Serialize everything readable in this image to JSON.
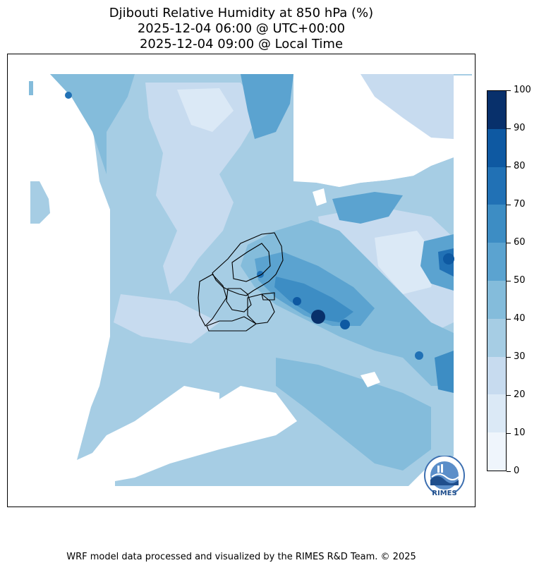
{
  "title": {
    "line1": "Djibouti Relative Humidity at 850 hPa (%)",
    "line2": "2025-12-04 06:00 @ UTC+00:00",
    "line3": "2025-12-04 09:00 @ Local Time"
  },
  "colorbar": {
    "ticks": [
      "0",
      "10",
      "20",
      "30",
      "40",
      "50",
      "60",
      "70",
      "80",
      "90",
      "100"
    ],
    "colors": [
      "#eff5fc",
      "#dbe9f6",
      "#c7dbef",
      "#a6cde4",
      "#84bcdb",
      "#5ba3d0",
      "#3d8dc4",
      "#2171b5",
      "#0e59a2",
      "#08306b"
    ]
  },
  "logo": {
    "text": "RIMES",
    "icon": "rimes-seal-icon"
  },
  "footer": "WRF model data processed and visualized by the RIMES R&D Team. © 2025"
}
